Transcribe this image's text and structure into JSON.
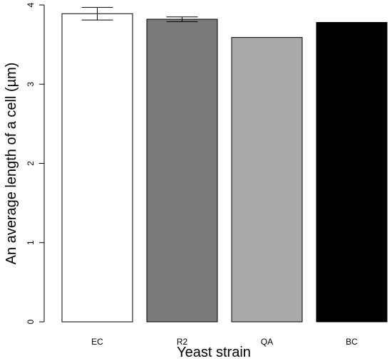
{
  "chart_data": {
    "type": "bar",
    "categories": [
      "EC",
      "R2",
      "QA",
      "BC"
    ],
    "values": [
      3.89,
      3.82,
      3.59,
      3.78
    ],
    "error_bars": [
      {
        "low": 3.81,
        "high": 3.97
      },
      {
        "low": 3.79,
        "high": 3.85
      },
      null,
      null
    ],
    "bar_colors": [
      "#ffffff",
      "#7a7a7a",
      "#aaaaaa",
      "#000000"
    ],
    "title": "",
    "xlabel": "Yeast strain",
    "ylabel": "An average length of a cell (µm)",
    "ylim": [
      0,
      4
    ],
    "yticks": [
      0,
      1,
      2,
      3,
      4
    ],
    "grid": false,
    "legend": "none"
  }
}
